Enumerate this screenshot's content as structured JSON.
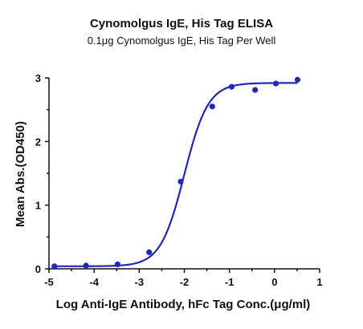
{
  "chart_data": {
    "type": "scatter",
    "title": "Cynomolgus IgE, His Tag ELISA",
    "subtitle": "0.1μg Cynomolgus IgE, His Tag Per Well",
    "xlabel": "Log Anti-IgE Antibody, hFc Tag Conc.(μg/ml)",
    "ylabel": "Mean Abs.(OD450)",
    "xlim": [
      -5,
      1
    ],
    "ylim": [
      0,
      3
    ],
    "x_ticks": [
      -5,
      -4,
      -3,
      -2,
      -1,
      0,
      1
    ],
    "x_tick_labels": [
      "-5",
      "-4",
      "-3",
      "-2",
      "-1",
      "0",
      "1"
    ],
    "y_ticks": [
      0,
      1,
      2,
      3
    ],
    "y_tick_labels": [
      "0",
      "1",
      "2",
      "3"
    ],
    "grid": false,
    "legend": "none",
    "color": "#2028b8",
    "series": [
      {
        "x": [
          -4.88,
          -4.18,
          -3.48,
          -2.78,
          -2.08,
          -1.38,
          -0.95,
          -0.43,
          0.03,
          0.51
        ],
        "y": [
          0.04,
          0.05,
          0.07,
          0.26,
          1.37,
          2.55,
          2.86,
          2.81,
          2.91,
          2.97
        ],
        "fit": {
          "model": "4PL",
          "bottom": 0.04,
          "top": 2.92,
          "log_ec50": -2.0,
          "hill_slope": 1.65
        }
      }
    ]
  }
}
